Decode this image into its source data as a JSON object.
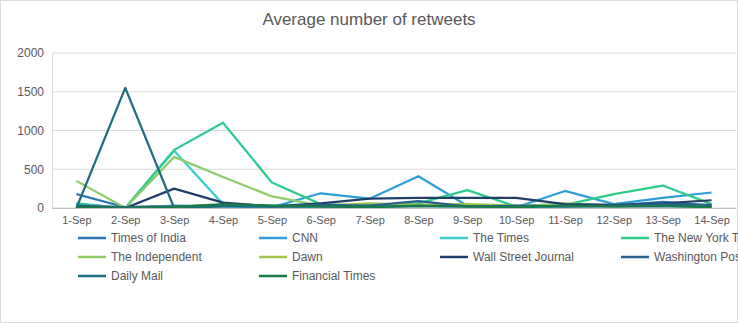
{
  "chart_data": {
    "type": "line",
    "title": "Average number of retweets",
    "categories": [
      "1-Sep",
      "2-Sep",
      "3-Sep",
      "4-Sep",
      "5-Sep",
      "6-Sep",
      "7-Sep",
      "8-Sep",
      "9-Sep",
      "10-Sep",
      "11-Sep",
      "12-Sep",
      "13-Sep",
      "14-Sep"
    ],
    "ylim": [
      0,
      2000
    ],
    "yticks": [
      0,
      500,
      1000,
      1500,
      2000
    ],
    "grid": true,
    "legend": "bottom",
    "series": [
      {
        "name": "Times of India",
        "color": "#2e75b6",
        "values": [
          180,
          10,
          20,
          30,
          10,
          20,
          30,
          40,
          30,
          20,
          40,
          30,
          80,
          30
        ]
      },
      {
        "name": "CNN",
        "color": "#2e9fd8",
        "values": [
          60,
          0,
          30,
          20,
          10,
          190,
          120,
          410,
          30,
          10,
          220,
          50,
          130,
          200
        ]
      },
      {
        "name": "The Times",
        "color": "#3ecfcf",
        "values": [
          50,
          0,
          740,
          50,
          30,
          20,
          10,
          30,
          20,
          10,
          20,
          30,
          40,
          20
        ]
      },
      {
        "name": "The New York Times",
        "color": "#2ecc8a",
        "values": [
          50,
          0,
          750,
          1100,
          330,
          50,
          30,
          60,
          230,
          20,
          40,
          180,
          290,
          50
        ]
      },
      {
        "name": "The Independent",
        "color": "#8ccc6b",
        "values": [
          350,
          0,
          660,
          400,
          150,
          30,
          20,
          40,
          30,
          20,
          60,
          30,
          40,
          20
        ]
      },
      {
        "name": "Dawn",
        "color": "#a2c44a",
        "values": [
          20,
          10,
          20,
          40,
          20,
          30,
          60,
          40,
          50,
          30,
          20,
          40,
          30,
          20
        ]
      },
      {
        "name": "Wall Street Journal",
        "color": "#1f3f6b",
        "values": [
          30,
          0,
          250,
          70,
          20,
          60,
          120,
          130,
          130,
          130,
          50,
          40,
          60,
          100
        ]
      },
      {
        "name": "Washington Post",
        "color": "#2a5f8f",
        "values": [
          20,
          10,
          20,
          30,
          20,
          40,
          30,
          90,
          20,
          30,
          20,
          30,
          50,
          40
        ]
      },
      {
        "name": "Daily Mail",
        "color": "#1f6e80",
        "values": [
          0,
          1550,
          0,
          20,
          20,
          20,
          20,
          20,
          20,
          20,
          20,
          20,
          20,
          20
        ]
      },
      {
        "name": "Financial Times",
        "color": "#1a7a4a",
        "values": [
          10,
          0,
          10,
          50,
          30,
          20,
          10,
          30,
          20,
          10,
          30,
          20,
          30,
          10
        ]
      }
    ]
  }
}
